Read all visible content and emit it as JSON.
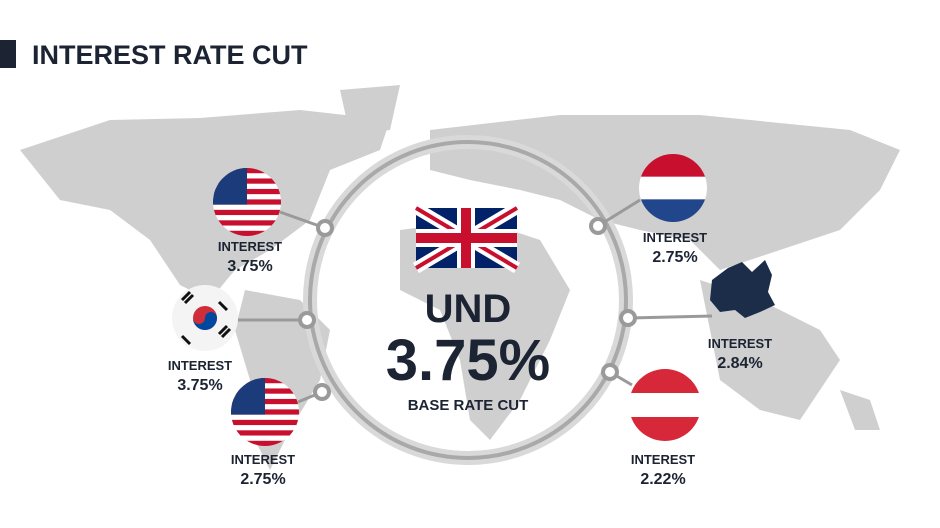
{
  "title": "INTEREST RATE CUT",
  "center": {
    "heading": "UND",
    "rate": "3.75%",
    "caption": "BASE RATE CUT"
  },
  "nodes": [
    {
      "label": "INTEREST",
      "rate": "3.75%"
    },
    {
      "label": "INTEREST",
      "rate": "3.75%"
    },
    {
      "label": "INTEREST",
      "rate": "2.75%"
    },
    {
      "label": "INTEREST",
      "rate": "2.75%"
    },
    {
      "label": "INTEREST",
      "rate": "2.84%"
    },
    {
      "label": "INTEREST",
      "rate": "2.22%"
    }
  ]
}
